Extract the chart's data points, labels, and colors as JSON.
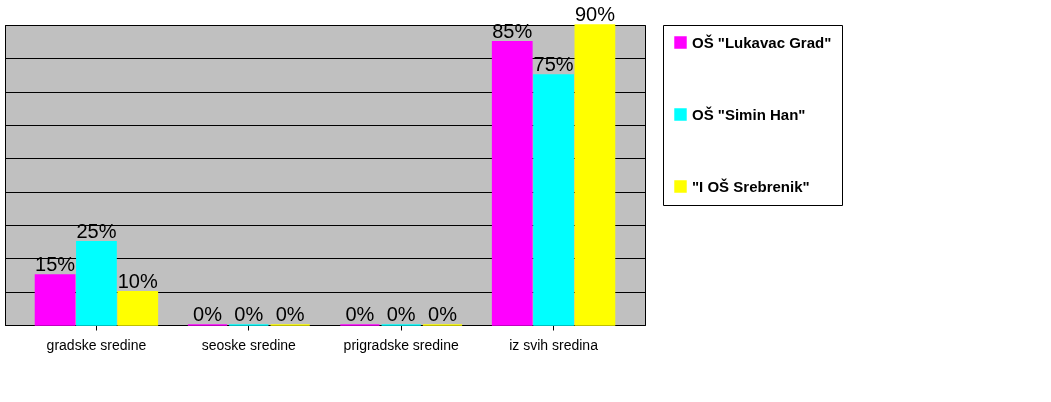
{
  "chart_data": {
    "type": "bar",
    "categories": [
      "gradske sredine",
      "seoske sredine",
      "prigradske sredine",
      "iz svih sredina"
    ],
    "series": [
      {
        "name": "OŠ \"Lukavac Grad\"",
        "color": "#ff00ff",
        "values": [
          15,
          0,
          0,
          85
        ],
        "value_labels": [
          "15%",
          "0%",
          "0%",
          "85%"
        ]
      },
      {
        "name": "OŠ \"Simin Han\"",
        "color": "#00ffff",
        "values": [
          25,
          0,
          0,
          75
        ],
        "value_labels": [
          "25%",
          "0%",
          "0%",
          "75%"
        ]
      },
      {
        "name": "\"I OŠ Srebrenik\"",
        "color": "#ffff00",
        "values": [
          10,
          0,
          0,
          90
        ],
        "value_labels": [
          "10%",
          "0%",
          "0%",
          "90%"
        ]
      }
    ],
    "grid": "y",
    "legend": "right",
    "tick_labels": "x"
  }
}
